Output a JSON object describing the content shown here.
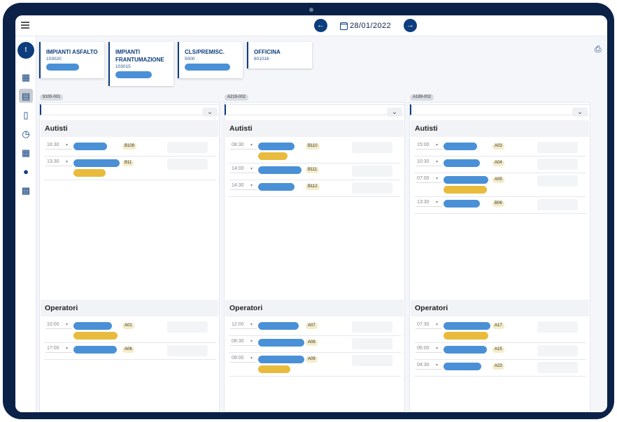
{
  "header": {
    "date": "28/01/2022"
  },
  "user": {
    "initial": "t"
  },
  "sidebar": {
    "icons": [
      "dashboard-icon",
      "calendar-icon",
      "clipboard-icon",
      "clock-icon",
      "schedule-icon",
      "user-settings-icon",
      "building-icon"
    ]
  },
  "plants": [
    {
      "name": "IMPIANTI ASFALTO",
      "code": "103020"
    },
    {
      "name": "IMPIANTI FRANTUMAZIONE",
      "code": "103015"
    },
    {
      "name": "CLS/PREMISC.",
      "code": "5000"
    },
    {
      "name": "OFFICINA",
      "code": "601016"
    }
  ],
  "sections": {
    "drivers": "Autisti",
    "operators": "Operatori"
  },
  "columns": [
    {
      "tag": "9100-001",
      "drivers": [
        {
          "time": "16:30",
          "code": "B109"
        },
        {
          "time": "13:30",
          "code": "B11"
        }
      ],
      "operators": [
        {
          "time": "10:00",
          "code": "A01"
        },
        {
          "time": "17:00",
          "code": "A06"
        }
      ]
    },
    {
      "tag": "A219-002",
      "drivers": [
        {
          "time": "08:30",
          "code": "B110"
        },
        {
          "time": "14:00",
          "code": "B111"
        },
        {
          "time": "14:30",
          "code": "B112"
        }
      ],
      "operators": [
        {
          "time": "12:00",
          "code": "A07"
        },
        {
          "time": "08:30",
          "code": "A08"
        },
        {
          "time": "08:00",
          "code": "A09"
        }
      ]
    },
    {
      "tag": "A189-002",
      "drivers": [
        {
          "time": "15:00",
          "code": "A03"
        },
        {
          "time": "10:30",
          "code": "A04"
        },
        {
          "time": "07:00",
          "code": "A05"
        },
        {
          "time": "13:30",
          "code": "B06"
        }
      ],
      "operators": [
        {
          "time": "07:30",
          "code": "A17"
        },
        {
          "time": "06:00",
          "code": "A15"
        },
        {
          "time": "04:30",
          "code": "A23"
        }
      ]
    }
  ]
}
